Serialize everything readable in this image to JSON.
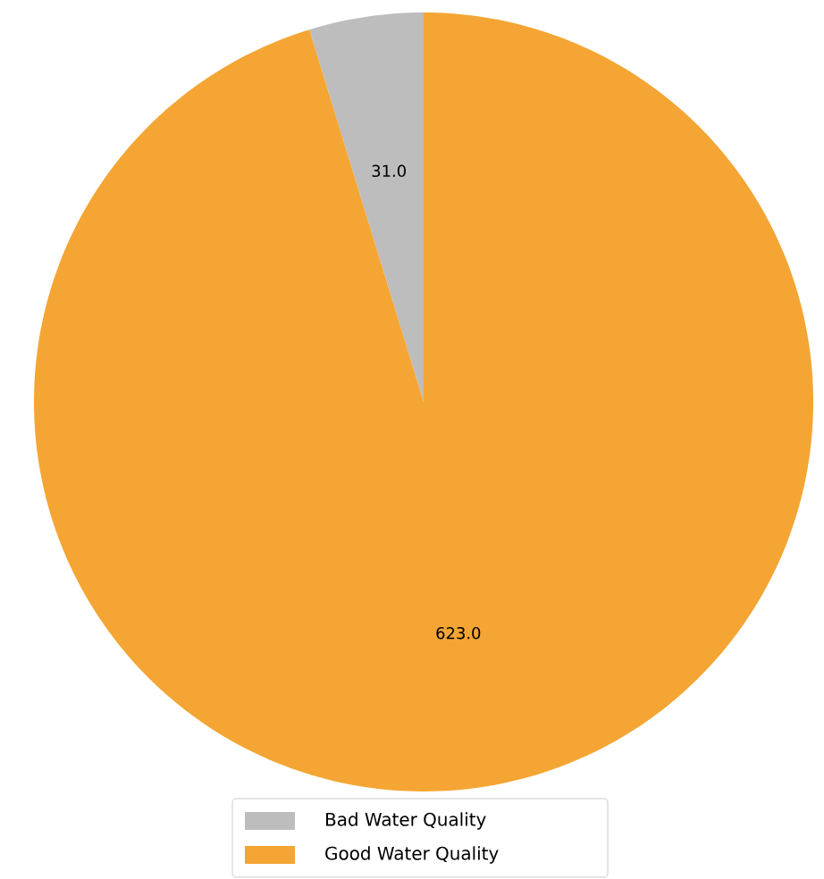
{
  "chart_data": {
    "type": "pie",
    "categories": [
      "Bad Water Quality",
      "Good Water Quality"
    ],
    "values": [
      31,
      623
    ],
    "value_labels": [
      "31.0",
      "623.0"
    ],
    "colors": [
      "#bdbdbd",
      "#f4a533"
    ],
    "legend": "bottom"
  }
}
